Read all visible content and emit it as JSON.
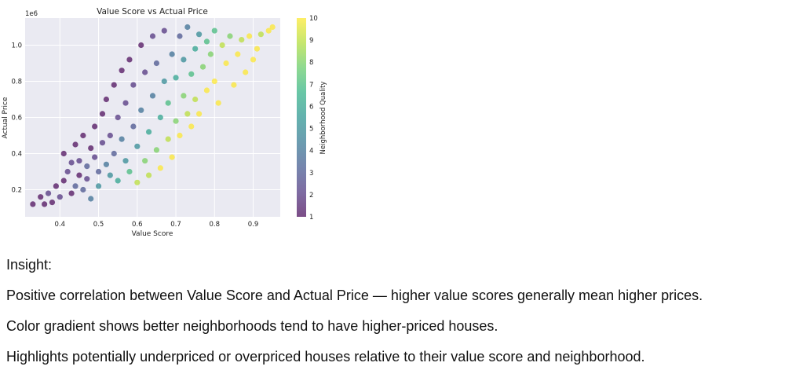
{
  "chart_data": {
    "type": "scatter",
    "title": "Value Score vs Actual Price",
    "xlabel": "Value Score",
    "ylabel": "Actual Price",
    "y_offset_label": "1e6",
    "xlim": [
      0.31,
      0.97
    ],
    "ylim": [
      0.05,
      1.15
    ],
    "xticks": [
      0.4,
      0.5,
      0.6,
      0.7,
      0.8,
      0.9
    ],
    "xtick_labels": [
      "0.4",
      "0.5",
      "0.6",
      "0.7",
      "0.8",
      "0.9"
    ],
    "yticks": [
      0.2,
      0.4,
      0.6,
      0.8,
      1.0
    ],
    "ytick_labels": [
      "0.2",
      "0.4",
      "0.6",
      "0.8",
      "1.0"
    ],
    "grid": true,
    "colorbar": {
      "label": "Neighborhood Quality",
      "range": [
        1,
        10
      ],
      "ticks": [
        1,
        2,
        3,
        4,
        5,
        6,
        7,
        8,
        9,
        10
      ],
      "tick_labels": [
        "1",
        "2",
        "3",
        "4",
        "5",
        "6",
        "7",
        "8",
        "9",
        "10"
      ],
      "colormap": "viridis"
    },
    "colors": {
      "background": "#eaeaf2",
      "grid": "#ffffff"
    },
    "series": [
      {
        "points": [
          [
            0.33,
            0.12,
            1
          ],
          [
            0.35,
            0.16,
            1
          ],
          [
            0.36,
            0.12,
            1
          ],
          [
            0.37,
            0.18,
            2
          ],
          [
            0.38,
            0.13,
            1
          ],
          [
            0.39,
            0.22,
            1
          ],
          [
            0.4,
            0.16,
            2
          ],
          [
            0.41,
            0.25,
            1
          ],
          [
            0.41,
            0.4,
            1
          ],
          [
            0.42,
            0.3,
            2
          ],
          [
            0.43,
            0.18,
            1
          ],
          [
            0.43,
            0.35,
            2
          ],
          [
            0.44,
            0.22,
            3
          ],
          [
            0.44,
            0.45,
            1
          ],
          [
            0.45,
            0.28,
            1
          ],
          [
            0.45,
            0.36,
            2
          ],
          [
            0.46,
            0.2,
            3
          ],
          [
            0.46,
            0.5,
            1
          ],
          [
            0.47,
            0.26,
            2
          ],
          [
            0.47,
            0.33,
            3
          ],
          [
            0.48,
            0.43,
            1
          ],
          [
            0.48,
            0.15,
            4
          ],
          [
            0.49,
            0.38,
            2
          ],
          [
            0.49,
            0.55,
            1
          ],
          [
            0.5,
            0.3,
            3
          ],
          [
            0.5,
            0.22,
            5
          ],
          [
            0.51,
            0.46,
            2
          ],
          [
            0.51,
            0.62,
            1
          ],
          [
            0.52,
            0.34,
            4
          ],
          [
            0.52,
            0.7,
            1
          ],
          [
            0.53,
            0.28,
            5
          ],
          [
            0.53,
            0.5,
            2
          ],
          [
            0.54,
            0.4,
            3
          ],
          [
            0.54,
            0.78,
            1
          ],
          [
            0.55,
            0.6,
            2
          ],
          [
            0.55,
            0.25,
            6
          ],
          [
            0.56,
            0.86,
            1
          ],
          [
            0.56,
            0.48,
            4
          ],
          [
            0.57,
            0.36,
            5
          ],
          [
            0.57,
            0.68,
            2
          ],
          [
            0.58,
            0.92,
            1
          ],
          [
            0.58,
            0.3,
            7
          ],
          [
            0.59,
            0.55,
            3
          ],
          [
            0.59,
            0.78,
            2
          ],
          [
            0.6,
            0.44,
            5
          ],
          [
            0.6,
            0.24,
            9
          ],
          [
            0.61,
            1.0,
            1
          ],
          [
            0.61,
            0.64,
            4
          ],
          [
            0.62,
            0.36,
            8
          ],
          [
            0.62,
            0.85,
            2
          ],
          [
            0.63,
            0.52,
            6
          ],
          [
            0.63,
            0.28,
            9
          ],
          [
            0.64,
            0.72,
            4
          ],
          [
            0.64,
            1.05,
            2
          ],
          [
            0.65,
            0.42,
            8
          ],
          [
            0.65,
            0.9,
            3
          ],
          [
            0.66,
            0.6,
            6
          ],
          [
            0.66,
            0.32,
            10
          ],
          [
            0.67,
            0.8,
            5
          ],
          [
            0.67,
            1.08,
            2
          ],
          [
            0.68,
            0.48,
            9
          ],
          [
            0.68,
            0.68,
            7
          ],
          [
            0.69,
            0.95,
            4
          ],
          [
            0.69,
            0.38,
            10
          ],
          [
            0.7,
            0.58,
            8
          ],
          [
            0.7,
            0.82,
            6
          ],
          [
            0.71,
            1.05,
            3
          ],
          [
            0.71,
            0.5,
            10
          ],
          [
            0.72,
            0.72,
            8
          ],
          [
            0.72,
            0.92,
            5
          ],
          [
            0.73,
            0.62,
            9
          ],
          [
            0.73,
            1.1,
            4
          ],
          [
            0.74,
            0.84,
            7
          ],
          [
            0.74,
            0.55,
            10
          ],
          [
            0.75,
            0.98,
            6
          ],
          [
            0.75,
            0.7,
            9
          ],
          [
            0.76,
            1.06,
            5
          ],
          [
            0.76,
            0.62,
            10
          ],
          [
            0.77,
            0.88,
            8
          ],
          [
            0.78,
            1.02,
            7
          ],
          [
            0.78,
            0.75,
            10
          ],
          [
            0.79,
            0.95,
            8
          ],
          [
            0.8,
            1.08,
            7
          ],
          [
            0.8,
            0.8,
            10
          ],
          [
            0.81,
            0.68,
            10
          ],
          [
            0.82,
            1.0,
            9
          ],
          [
            0.83,
            0.9,
            10
          ],
          [
            0.84,
            1.05,
            8
          ],
          [
            0.85,
            0.78,
            10
          ],
          [
            0.86,
            0.95,
            10
          ],
          [
            0.87,
            1.03,
            9
          ],
          [
            0.88,
            0.85,
            10
          ],
          [
            0.89,
            1.05,
            10
          ],
          [
            0.9,
            0.92,
            10
          ],
          [
            0.91,
            0.98,
            10
          ],
          [
            0.94,
            1.08,
            10
          ],
          [
            0.95,
            1.1,
            10
          ],
          [
            0.92,
            1.06,
            9
          ]
        ]
      }
    ]
  },
  "insight": {
    "label": "Insight:",
    "lines": [
      "Positive correlation between Value Score and Actual Price — higher value scores generally mean higher prices.",
      "Color gradient shows better neighborhoods tend to have higher-priced houses.",
      "Highlights potentially underpriced or overpriced houses relative to their value score and neighborhood."
    ]
  }
}
